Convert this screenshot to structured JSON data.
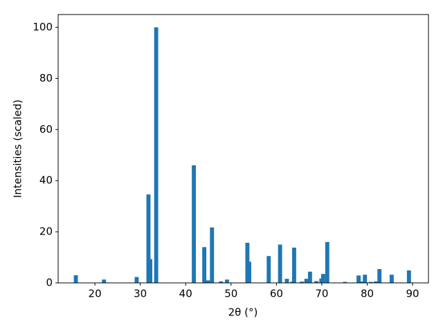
{
  "chart_data": {
    "type": "bar",
    "x_label": "2θ (°)",
    "y_label": "Intensities (scaled)",
    "color": "#1f77b4",
    "x": [
      15.8,
      22.0,
      29.2,
      31.8,
      32.2,
      33.5,
      41.8,
      44.1,
      44.9,
      45.8,
      47.8,
      49.1,
      53.6,
      54.0,
      58.3,
      60.8,
      62.3,
      63.5,
      63.9,
      65.6,
      66.6,
      67.4,
      68.8,
      69.9,
      70.3,
      71.2,
      75.1,
      78.1,
      78.6,
      79.5,
      80.8,
      81.9,
      82.7,
      85.4,
      89.2
    ],
    "values": [
      3.0,
      1.3,
      2.3,
      34.6,
      9.3,
      100,
      46.0,
      14.0,
      1.0,
      21.7,
      0.6,
      1.3,
      15.7,
      8.3,
      10.5,
      15.0,
      1.6,
      0.5,
      13.8,
      0.5,
      1.6,
      4.4,
      0.7,
      1.7,
      3.5,
      16.0,
      0.4,
      2.9,
      0.6,
      3.2,
      0.4,
      0.6,
      5.4,
      3.2,
      4.9
    ],
    "xlim": [
      11.9,
      93.5
    ],
    "ylim": [
      0,
      105
    ],
    "xticks": [
      20,
      30,
      40,
      50,
      60,
      70,
      80,
      90
    ],
    "yticks": [
      0,
      20,
      40,
      60,
      80,
      100
    ]
  }
}
